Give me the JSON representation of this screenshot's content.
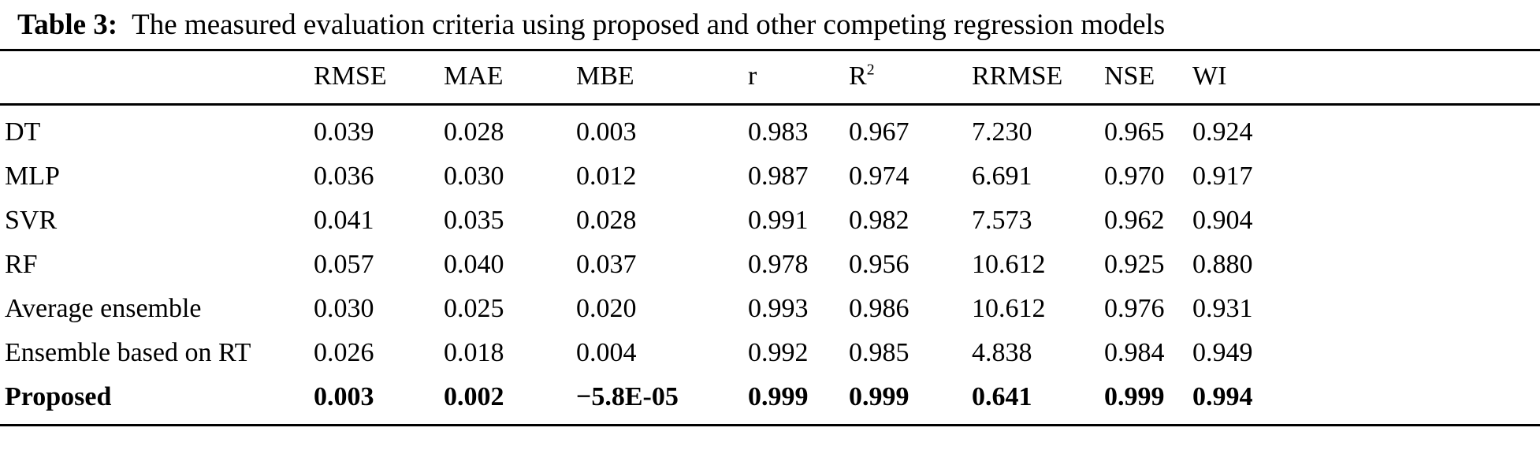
{
  "caption": {
    "label": "Table 3:",
    "text": "The measured evaluation criteria using proposed and other competing regression models"
  },
  "table": {
    "columns": [
      {
        "id": "rmse",
        "label": "RMSE"
      },
      {
        "id": "mae",
        "label": "MAE"
      },
      {
        "id": "mbe",
        "label": "MBE"
      },
      {
        "id": "r",
        "label": "r"
      },
      {
        "id": "r2",
        "label": "R",
        "sup": "2"
      },
      {
        "id": "rrmse",
        "label": "RRMSE"
      },
      {
        "id": "nse",
        "label": "NSE"
      },
      {
        "id": "wi",
        "label": "WI"
      }
    ],
    "rows": [
      {
        "name": "DT",
        "bold": false,
        "values": [
          "0.039",
          "0.028",
          "0.003",
          "0.983",
          "0.967",
          "7.230",
          "0.965",
          "0.924"
        ]
      },
      {
        "name": "MLP",
        "bold": false,
        "values": [
          "0.036",
          "0.030",
          "0.012",
          "0.987",
          "0.974",
          "6.691",
          "0.970",
          "0.917"
        ]
      },
      {
        "name": "SVR",
        "bold": false,
        "values": [
          "0.041",
          "0.035",
          "0.028",
          "0.991",
          "0.982",
          "7.573",
          "0.962",
          "0.904"
        ]
      },
      {
        "name": "RF",
        "bold": false,
        "values": [
          "0.057",
          "0.040",
          "0.037",
          "0.978",
          "0.956",
          "10.612",
          "0.925",
          "0.880"
        ]
      },
      {
        "name": "Average ensemble",
        "bold": false,
        "values": [
          "0.030",
          "0.025",
          "0.020",
          "0.993",
          "0.986",
          "10.612",
          "0.976",
          "0.931"
        ]
      },
      {
        "name": "Ensemble based on RT",
        "bold": false,
        "values": [
          "0.026",
          "0.018",
          "0.004",
          "0.992",
          "0.985",
          "4.838",
          "0.984",
          "0.949"
        ]
      },
      {
        "name": "Proposed",
        "bold": true,
        "values": [
          "0.003",
          "0.002",
          "−5.8E-05",
          "0.999",
          "0.999",
          "0.641",
          "0.999",
          "0.994"
        ]
      }
    ]
  }
}
